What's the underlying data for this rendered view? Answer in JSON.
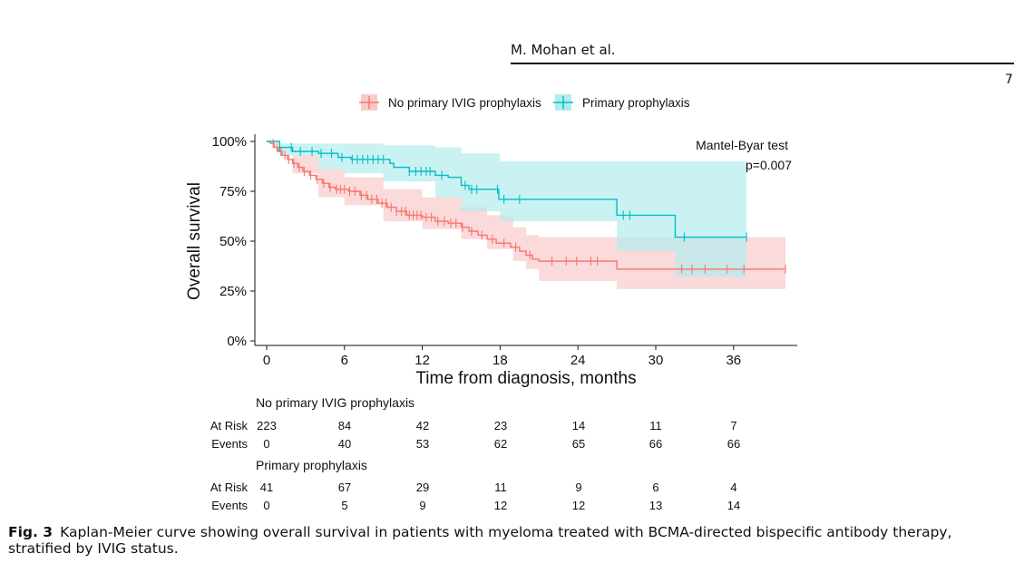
{
  "running_head": "M. Mohan et al.",
  "page_number": "7",
  "colors": {
    "no_ivig": "#F8766D",
    "primary": "#00BFC4",
    "no_ivig_band": "#F8CACA",
    "primary_band": "#B3ECEE"
  },
  "chart_data": {
    "type": "line",
    "subtype": "kaplan-meier",
    "xlabel": "Time from diagnosis, months",
    "ylabel": "Overall survival",
    "xlim": [
      0,
      40
    ],
    "ylim": [
      0,
      100
    ],
    "xticks": [
      0,
      6,
      12,
      18,
      24,
      30,
      36
    ],
    "yticks": [
      0,
      25,
      50,
      75,
      100
    ],
    "ytick_labels": [
      "0%",
      "25%",
      "50%",
      "75%",
      "100%"
    ],
    "legend_position": "top",
    "annotation": {
      "line1": "Mantel-Byar test",
      "line2": "p=0.007"
    },
    "series": [
      {
        "name": "No primary IVIG prophylaxis",
        "color": "#F8766D",
        "steps": [
          [
            0,
            100
          ],
          [
            0.3,
            99
          ],
          [
            0.6,
            97
          ],
          [
            0.9,
            95
          ],
          [
            1.2,
            93
          ],
          [
            1.6,
            91
          ],
          [
            2,
            89
          ],
          [
            2.4,
            87
          ],
          [
            2.8,
            85
          ],
          [
            3.3,
            83
          ],
          [
            3.8,
            81
          ],
          [
            4.3,
            79
          ],
          [
            4.8,
            77
          ],
          [
            5.3,
            76
          ],
          [
            6.3,
            75
          ],
          [
            7.2,
            73
          ],
          [
            7.8,
            71
          ],
          [
            8.6,
            69
          ],
          [
            9.3,
            67
          ],
          [
            10,
            65
          ],
          [
            10.8,
            63
          ],
          [
            12,
            62
          ],
          [
            13,
            60
          ],
          [
            14,
            59
          ],
          [
            15,
            57
          ],
          [
            15.6,
            55
          ],
          [
            16.3,
            53
          ],
          [
            17,
            51
          ],
          [
            17.7,
            49
          ],
          [
            18.8,
            47
          ],
          [
            19.5,
            45
          ],
          [
            20,
            43
          ],
          [
            20.5,
            41
          ],
          [
            21,
            40
          ],
          [
            27,
            36
          ],
          [
            40,
            36
          ]
        ],
        "upper": [
          [
            0,
            100
          ],
          [
            2,
            93
          ],
          [
            4,
            86
          ],
          [
            6,
            82
          ],
          [
            9,
            76
          ],
          [
            12,
            72
          ],
          [
            15,
            67
          ],
          [
            17,
            63
          ],
          [
            19,
            57
          ],
          [
            20,
            53
          ],
          [
            21,
            52
          ],
          [
            27,
            52
          ],
          [
            40,
            51
          ]
        ],
        "lower": [
          [
            0,
            100
          ],
          [
            2,
            84
          ],
          [
            4,
            72
          ],
          [
            6,
            68
          ],
          [
            9,
            60
          ],
          [
            12,
            56
          ],
          [
            15,
            51
          ],
          [
            17,
            46
          ],
          [
            19,
            40
          ],
          [
            20,
            36
          ],
          [
            21,
            30
          ],
          [
            27,
            26
          ],
          [
            40,
            26
          ]
        ],
        "censor_times": [
          0.5,
          0.8,
          1.1,
          1.4,
          1.7,
          2.1,
          2.5,
          2.9,
          3.4,
          3.9,
          4.4,
          4.9,
          5.4,
          5.7,
          6.0,
          6.4,
          6.8,
          7.3,
          7.7,
          8.1,
          8.5,
          8.9,
          9.2,
          9.6,
          10.0,
          10.4,
          10.7,
          11.0,
          11.3,
          11.6,
          11.9,
          12.3,
          12.7,
          13.2,
          13.7,
          14.2,
          14.6,
          15.1,
          15.8,
          16.6,
          17.4,
          18.3,
          19.2,
          20.3,
          22.0,
          23.1,
          23.9,
          25.0,
          25.5,
          32.0,
          32.8,
          33.8,
          35.5,
          36.8,
          40.0
        ]
      },
      {
        "name": "Primary prophylaxis",
        "color": "#00BFC4",
        "steps": [
          [
            0,
            100
          ],
          [
            1,
            97
          ],
          [
            2,
            95
          ],
          [
            4,
            94
          ],
          [
            5.5,
            92
          ],
          [
            6.5,
            91
          ],
          [
            9.5,
            89
          ],
          [
            9.8,
            87
          ],
          [
            11,
            85
          ],
          [
            13,
            83
          ],
          [
            14,
            82
          ],
          [
            15,
            78
          ],
          [
            15.6,
            76
          ],
          [
            17.9,
            71
          ],
          [
            27,
            63
          ],
          [
            31.5,
            52
          ],
          [
            37,
            52
          ]
        ],
        "upper": [
          [
            0,
            100
          ],
          [
            1,
            99
          ],
          [
            4,
            99
          ],
          [
            6,
            99
          ],
          [
            9,
            98
          ],
          [
            13,
            97
          ],
          [
            15,
            94
          ],
          [
            18,
            90
          ],
          [
            27,
            90
          ],
          [
            31.5,
            90
          ],
          [
            37,
            90
          ]
        ],
        "lower": [
          [
            0,
            100
          ],
          [
            1,
            93
          ],
          [
            4,
            86
          ],
          [
            6,
            84
          ],
          [
            9,
            80
          ],
          [
            13,
            72
          ],
          [
            15,
            65
          ],
          [
            18,
            60
          ],
          [
            27,
            45
          ],
          [
            31.5,
            32
          ],
          [
            37,
            32
          ]
        ],
        "censor_times": [
          1.0,
          1.9,
          2.6,
          3.5,
          4.2,
          5.0,
          5.8,
          6.6,
          7.0,
          7.4,
          7.8,
          8.2,
          8.6,
          9.0,
          11.0,
          11.5,
          11.9,
          12.3,
          12.6,
          13.5,
          15.3,
          15.8,
          16.2,
          17.8,
          18.3,
          19.5,
          27.5,
          28.0,
          32.2,
          37.0
        ]
      }
    ]
  },
  "risk_table": {
    "groups": [
      {
        "title": "No primary IVIG prophylaxis",
        "rows": [
          {
            "label": "At Risk",
            "values": [
              "223",
              "84",
              "42",
              "23",
              "14",
              "11",
              "7"
            ]
          },
          {
            "label": "Events",
            "values": [
              "0",
              "40",
              "53",
              "62",
              "65",
              "66",
              "66"
            ]
          }
        ]
      },
      {
        "title": "Primary prophylaxis",
        "rows": [
          {
            "label": "At Risk",
            "values": [
              "41",
              "67",
              "29",
              "11",
              "9",
              "6",
              "4"
            ]
          },
          {
            "label": "Events",
            "values": [
              "0",
              "5",
              "9",
              "12",
              "12",
              "13",
              "14"
            ]
          }
        ]
      }
    ]
  },
  "caption": {
    "label": "Fig. 3",
    "text": "Kaplan-Meier curve showing overall survival in patients with myeloma treated with BCMA-directed bispecific antibody therapy, stratified by IVIG status."
  }
}
